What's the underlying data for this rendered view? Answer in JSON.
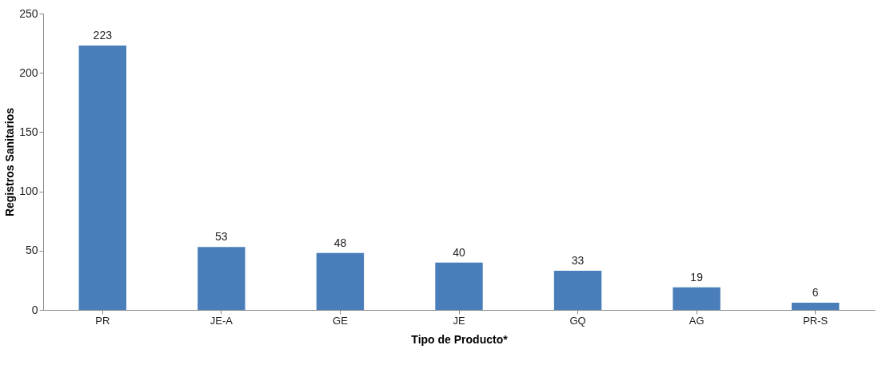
{
  "chart_data": {
    "type": "bar",
    "xlabel": "Tipo de Producto*",
    "ylabel": "Registros Sanitarios",
    "categories": [
      "PR",
      "JE-A",
      "GE",
      "JE",
      "GQ",
      "AG",
      "PR-S"
    ],
    "values": [
      223,
      53,
      48,
      40,
      33,
      19,
      6
    ],
    "color": "#4a7ebb",
    "ylim": [
      0,
      250
    ],
    "yticks": [
      0,
      50,
      100,
      150,
      200,
      250
    ],
    "grid": false,
    "data_labels": true
  }
}
